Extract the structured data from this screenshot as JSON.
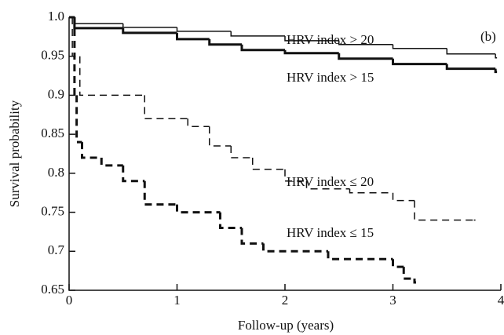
{
  "chart_data": {
    "type": "step",
    "xlabel": "Follow-up (years)",
    "ylabel": "Survival probability",
    "panel_label": "(b)",
    "xlim": [
      0,
      4
    ],
    "xticks": [
      0,
      1,
      2,
      3,
      4
    ],
    "ylim": [
      0.65,
      1.0
    ],
    "yticks": [
      0.65,
      0.7,
      0.75,
      0.8,
      0.85,
      0.9,
      0.95,
      {
        "value": 1.0,
        "label": "1.0"
      }
    ],
    "series": [
      {
        "name": "HRV index > 20",
        "color": "#111111",
        "style": "solid",
        "width": 1.5,
        "x": [
          0,
          0.05,
          0.5,
          1,
          1.5,
          2,
          2.5,
          3,
          3.5,
          3.95
        ],
        "values": [
          1.0,
          0.992,
          0.987,
          0.982,
          0.976,
          0.97,
          0.965,
          0.96,
          0.953,
          0.948
        ]
      },
      {
        "name": "HRV index > 15",
        "color": "#111111",
        "style": "solid",
        "width": 3,
        "x": [
          0,
          0.05,
          0.5,
          1,
          1.3,
          1.6,
          2,
          2.5,
          3,
          3.5,
          3.95
        ],
        "values": [
          1.0,
          0.986,
          0.98,
          0.972,
          0.965,
          0.958,
          0.954,
          0.947,
          0.94,
          0.934,
          0.93
        ]
      },
      {
        "name": "HRV index ≤ 20",
        "color": "#111111",
        "style": "dashed",
        "width": 1.5,
        "x": [
          0,
          0.03,
          0.1,
          0.7,
          1.1,
          1.3,
          1.5,
          1.7,
          2.0,
          2.2,
          2.6,
          3.0,
          3.2,
          3.75
        ],
        "values": [
          1.0,
          0.95,
          0.9,
          0.87,
          0.86,
          0.835,
          0.82,
          0.805,
          0.79,
          0.78,
          0.775,
          0.765,
          0.74,
          0.74
        ]
      },
      {
        "name": "HRV index ≤ 15",
        "color": "#111111",
        "style": "dashed",
        "width": 3,
        "x": [
          0,
          0.05,
          0.07,
          0.12,
          0.3,
          0.5,
          0.7,
          1.0,
          1.4,
          1.6,
          1.8,
          2.4,
          3.0,
          3.1,
          3.2
        ],
        "values": [
          1.0,
          0.9,
          0.84,
          0.82,
          0.81,
          0.79,
          0.76,
          0.75,
          0.73,
          0.71,
          0.7,
          0.69,
          0.68,
          0.665,
          0.66
        ]
      }
    ]
  }
}
